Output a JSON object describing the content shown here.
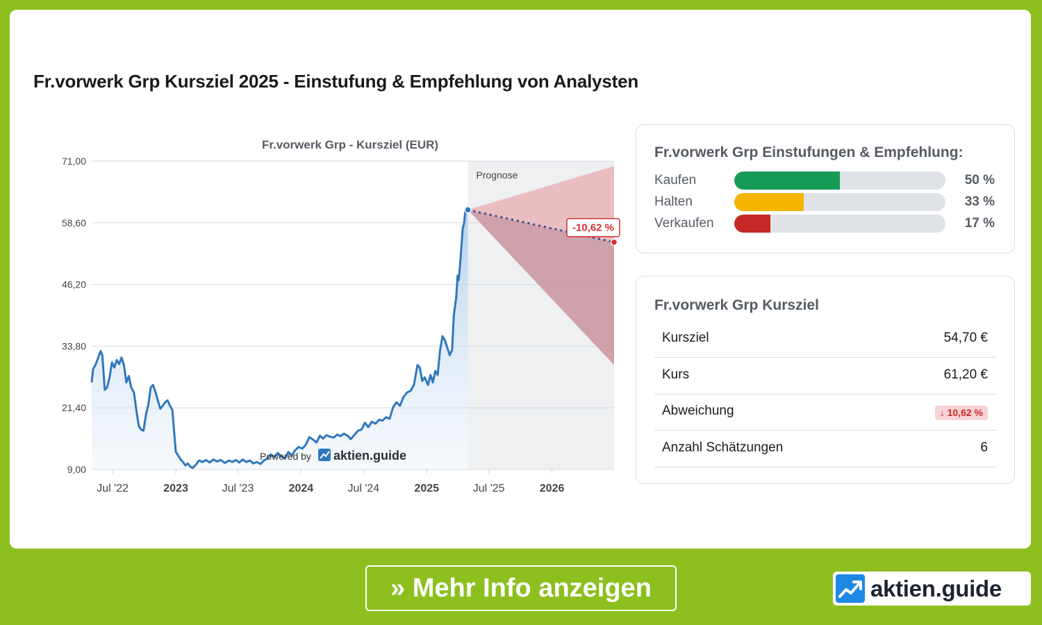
{
  "page": {
    "title": "Fr.vorwerk Grp Kursziel 2025 - Einstufung & Empfehlung von Analysten"
  },
  "colors": {
    "frame": "#8dbf1f",
    "price_line": "#2f77bd",
    "forecast_red": "#d32f2f",
    "buy": "#159b55",
    "hold": "#f4b400",
    "sell": "#c62828"
  },
  "chart_data": {
    "type": "line",
    "title": "Fr.vorwerk Grp - Kursziel (EUR)",
    "xlabel": "",
    "ylabel": "",
    "ylim": [
      9.0,
      71.0
    ],
    "y_ticks": [
      "71,00",
      "58,60",
      "46,20",
      "33,80",
      "21,40",
      "9,00"
    ],
    "y_tick_values": [
      71.0,
      58.6,
      46.2,
      33.8,
      21.4,
      9.0
    ],
    "x_ticks": [
      {
        "label": "Jul '22",
        "date": "2022-07-01",
        "bold": false
      },
      {
        "label": "2023",
        "date": "2023-01-01",
        "bold": true
      },
      {
        "label": "Jul '23",
        "date": "2023-07-01",
        "bold": false
      },
      {
        "label": "2024",
        "date": "2024-01-01",
        "bold": true
      },
      {
        "label": "Jul '24",
        "date": "2024-07-01",
        "bold": false
      },
      {
        "label": "2025",
        "date": "2025-01-01",
        "bold": true
      },
      {
        "label": "Jul '25",
        "date": "2025-07-01",
        "bold": false
      },
      {
        "label": "2026",
        "date": "2026-01-01",
        "bold": true
      }
    ],
    "x_range": [
      "2022-05-01",
      "2026-07-01"
    ],
    "grid": true,
    "forecast_start": "2025-05-01",
    "forecast_label": "Prognose",
    "forecast": {
      "start": {
        "date": "2025-05-01",
        "value": 61.2
      },
      "end": {
        "date": "2026-07-01",
        "value": 54.7
      },
      "high": 70.0,
      "low": 30.0,
      "label": "-10,62 %"
    },
    "series": [
      {
        "points": [
          [
            "2022-05-01",
            26.5
          ],
          [
            "2022-05-05",
            29.2
          ],
          [
            "2022-05-12",
            30.0
          ],
          [
            "2022-05-20",
            31.5
          ],
          [
            "2022-05-27",
            32.8
          ],
          [
            "2022-06-01",
            32.0
          ],
          [
            "2022-06-08",
            25.0
          ],
          [
            "2022-06-15",
            25.5
          ],
          [
            "2022-06-22",
            27.5
          ],
          [
            "2022-06-29",
            30.5
          ],
          [
            "2022-07-06",
            29.5
          ],
          [
            "2022-07-13",
            31.0
          ],
          [
            "2022-07-20",
            30.2
          ],
          [
            "2022-07-27",
            31.5
          ],
          [
            "2022-08-03",
            30.0
          ],
          [
            "2022-08-10",
            26.5
          ],
          [
            "2022-08-17",
            27.8
          ],
          [
            "2022-08-24",
            25.5
          ],
          [
            "2022-09-01",
            24.5
          ],
          [
            "2022-09-08",
            21.0
          ],
          [
            "2022-09-15",
            17.8
          ],
          [
            "2022-09-22",
            17.0
          ],
          [
            "2022-09-29",
            16.8
          ],
          [
            "2022-10-06",
            20.0
          ],
          [
            "2022-10-13",
            22.0
          ],
          [
            "2022-10-20",
            25.5
          ],
          [
            "2022-10-27",
            26.0
          ],
          [
            "2022-11-03",
            24.5
          ],
          [
            "2022-11-10",
            22.8
          ],
          [
            "2022-11-17",
            21.2
          ],
          [
            "2022-11-24",
            21.8
          ],
          [
            "2022-12-01",
            22.5
          ],
          [
            "2022-12-08",
            22.9
          ],
          [
            "2022-12-15",
            21.8
          ],
          [
            "2022-12-22",
            21.0
          ],
          [
            "2023-01-01",
            12.5
          ],
          [
            "2023-01-08",
            11.8
          ],
          [
            "2023-01-15",
            11.0
          ],
          [
            "2023-01-22",
            10.5
          ],
          [
            "2023-01-29",
            9.8
          ],
          [
            "2023-02-05",
            10.2
          ],
          [
            "2023-02-12",
            9.6
          ],
          [
            "2023-02-19",
            9.3
          ],
          [
            "2023-03-01",
            10.0
          ],
          [
            "2023-03-10",
            10.8
          ],
          [
            "2023-03-20",
            10.5
          ],
          [
            "2023-03-30",
            10.9
          ],
          [
            "2023-04-10",
            10.4
          ],
          [
            "2023-04-20",
            11.0
          ],
          [
            "2023-05-01",
            10.6
          ],
          [
            "2023-05-12",
            10.9
          ],
          [
            "2023-05-24",
            10.3
          ],
          [
            "2023-06-05",
            10.8
          ],
          [
            "2023-06-15",
            10.5
          ],
          [
            "2023-06-25",
            10.9
          ],
          [
            "2023-07-05",
            10.4
          ],
          [
            "2023-07-15",
            11.0
          ],
          [
            "2023-07-25",
            10.5
          ],
          [
            "2023-08-05",
            10.8
          ],
          [
            "2023-08-15",
            10.2
          ],
          [
            "2023-08-25",
            10.5
          ],
          [
            "2023-09-05",
            10.1
          ],
          [
            "2023-09-15",
            10.8
          ],
          [
            "2023-09-25",
            11.2
          ],
          [
            "2023-10-05",
            12.0
          ],
          [
            "2023-10-15",
            11.5
          ],
          [
            "2023-10-25",
            12.3
          ],
          [
            "2023-11-05",
            11.6
          ],
          [
            "2023-11-15",
            11.2
          ],
          [
            "2023-11-25",
            12.5
          ],
          [
            "2023-12-05",
            11.8
          ],
          [
            "2023-12-15",
            12.9
          ],
          [
            "2023-12-25",
            13.5
          ],
          [
            "2024-01-05",
            13.2
          ],
          [
            "2024-01-15",
            14.0
          ],
          [
            "2024-01-25",
            15.5
          ],
          [
            "2024-02-05",
            15.0
          ],
          [
            "2024-02-15",
            14.4
          ],
          [
            "2024-02-25",
            15.8
          ],
          [
            "2024-03-05",
            15.2
          ],
          [
            "2024-03-15",
            15.9
          ],
          [
            "2024-03-25",
            15.6
          ],
          [
            "2024-04-05",
            15.4
          ],
          [
            "2024-04-15",
            16.0
          ],
          [
            "2024-04-25",
            15.7
          ],
          [
            "2024-05-05",
            16.2
          ],
          [
            "2024-05-15",
            15.8
          ],
          [
            "2024-05-25",
            15.1
          ],
          [
            "2024-06-05",
            16.0
          ],
          [
            "2024-06-15",
            16.8
          ],
          [
            "2024-06-25",
            17.0
          ],
          [
            "2024-07-05",
            18.4
          ],
          [
            "2024-07-15",
            17.5
          ],
          [
            "2024-07-25",
            18.6
          ],
          [
            "2024-08-05",
            18.2
          ],
          [
            "2024-08-15",
            19.0
          ],
          [
            "2024-08-25",
            18.8
          ],
          [
            "2024-09-05",
            19.5
          ],
          [
            "2024-09-15",
            19.2
          ],
          [
            "2024-09-25",
            21.5
          ],
          [
            "2024-10-05",
            22.5
          ],
          [
            "2024-10-15",
            21.8
          ],
          [
            "2024-10-25",
            23.5
          ],
          [
            "2024-11-05",
            24.5
          ],
          [
            "2024-11-15",
            24.8
          ],
          [
            "2024-11-25",
            26.0
          ],
          [
            "2024-12-05",
            30.0
          ],
          [
            "2024-12-12",
            29.5
          ],
          [
            "2024-12-19",
            26.8
          ],
          [
            "2024-12-26",
            27.5
          ],
          [
            "2025-01-05",
            26.0
          ],
          [
            "2025-01-12",
            28.0
          ],
          [
            "2025-01-19",
            26.5
          ],
          [
            "2025-01-26",
            28.8
          ],
          [
            "2025-02-02",
            28.0
          ],
          [
            "2025-02-09",
            33.0
          ],
          [
            "2025-02-16",
            35.8
          ],
          [
            "2025-02-23",
            35.0
          ],
          [
            "2025-03-02",
            33.5
          ],
          [
            "2025-03-09",
            32.0
          ],
          [
            "2025-03-16",
            33.0
          ],
          [
            "2025-03-21",
            40.0
          ],
          [
            "2025-03-28",
            43.5
          ],
          [
            "2025-04-01",
            48.0
          ],
          [
            "2025-04-04",
            47.0
          ],
          [
            "2025-04-08",
            50.0
          ],
          [
            "2025-04-12",
            53.5
          ],
          [
            "2025-04-16",
            57.5
          ],
          [
            "2025-04-20",
            58.5
          ],
          [
            "2025-04-24",
            61.5
          ],
          [
            "2025-05-01",
            61.2
          ]
        ]
      }
    ]
  },
  "watermark": {
    "prefix": "Powered by",
    "brand": "aktien.guide"
  },
  "ratings": {
    "title": "Fr.vorwerk Grp Einstufungen & Empfehlung:",
    "items": [
      {
        "label": "Kaufen",
        "value": 50,
        "pct_text": "50 %",
        "color": "#159b55"
      },
      {
        "label": "Halten",
        "value": 33,
        "pct_text": "33 %",
        "color": "#f4b400"
      },
      {
        "label": "Verkaufen",
        "value": 17,
        "pct_text": "17 %",
        "color": "#c62828"
      }
    ]
  },
  "kursziel": {
    "title": "Fr.vorwerk Grp Kursziel",
    "rows": [
      {
        "label": "Kursziel",
        "value": "54,70 €"
      },
      {
        "label": "Kurs",
        "value": "61,20 €"
      },
      {
        "label": "Abweichung",
        "badge": "↓ 10,62 %"
      },
      {
        "label": "Anzahl Schätzungen",
        "value": "6"
      }
    ]
  },
  "footer": {
    "button_label": "» Mehr Info anzeigen",
    "brand": "aktien.guide"
  }
}
